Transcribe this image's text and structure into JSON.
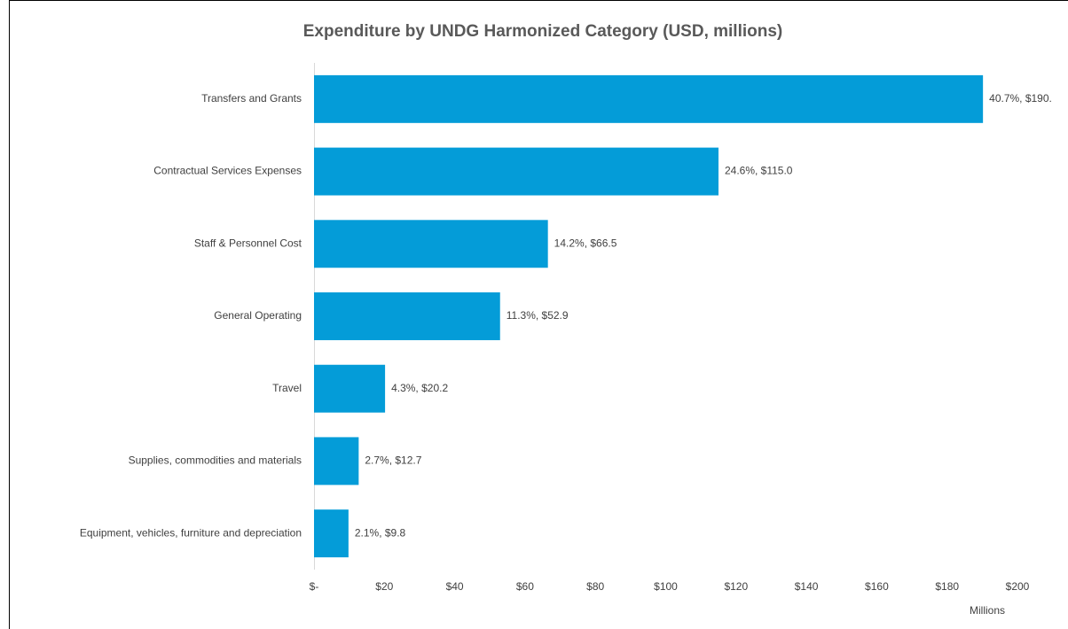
{
  "chart_data": {
    "type": "bar",
    "orientation": "horizontal",
    "title": "Expenditure by UNDG Harmonized Category (USD, millions)",
    "categories": [
      "Transfers and Grants",
      "Contractual Services Expenses",
      "Staff & Personnel Cost",
      "General Operating",
      "Travel",
      "Supplies, commodities and materials",
      "Equipment, vehicles, furniture and depreciation"
    ],
    "values": [
      190.2,
      115.0,
      66.5,
      52.9,
      20.2,
      12.7,
      9.8
    ],
    "value_labels": [
      "40.7%, $190.",
      "24.6%, $115.0",
      "14.2%, $66.5",
      "11.3%, $52.9",
      "4.3%, $20.2",
      "2.7%, $12.7",
      "2.1%, $9.8"
    ],
    "color": "#049cd8",
    "xlim": [
      0,
      200
    ],
    "xticks": [
      {
        "value": 0,
        "label": "$-"
      },
      {
        "value": 20,
        "label": "$20"
      },
      {
        "value": 40,
        "label": "$40"
      },
      {
        "value": 60,
        "label": "$60"
      },
      {
        "value": 80,
        "label": "$80"
      },
      {
        "value": 100,
        "label": "$100"
      },
      {
        "value": 120,
        "label": "$120"
      },
      {
        "value": 140,
        "label": "$140"
      },
      {
        "value": 160,
        "label": "$160"
      },
      {
        "value": 180,
        "label": "$180"
      },
      {
        "value": 200,
        "label": "$200"
      }
    ],
    "xlabel": "Millions",
    "grid": false
  }
}
